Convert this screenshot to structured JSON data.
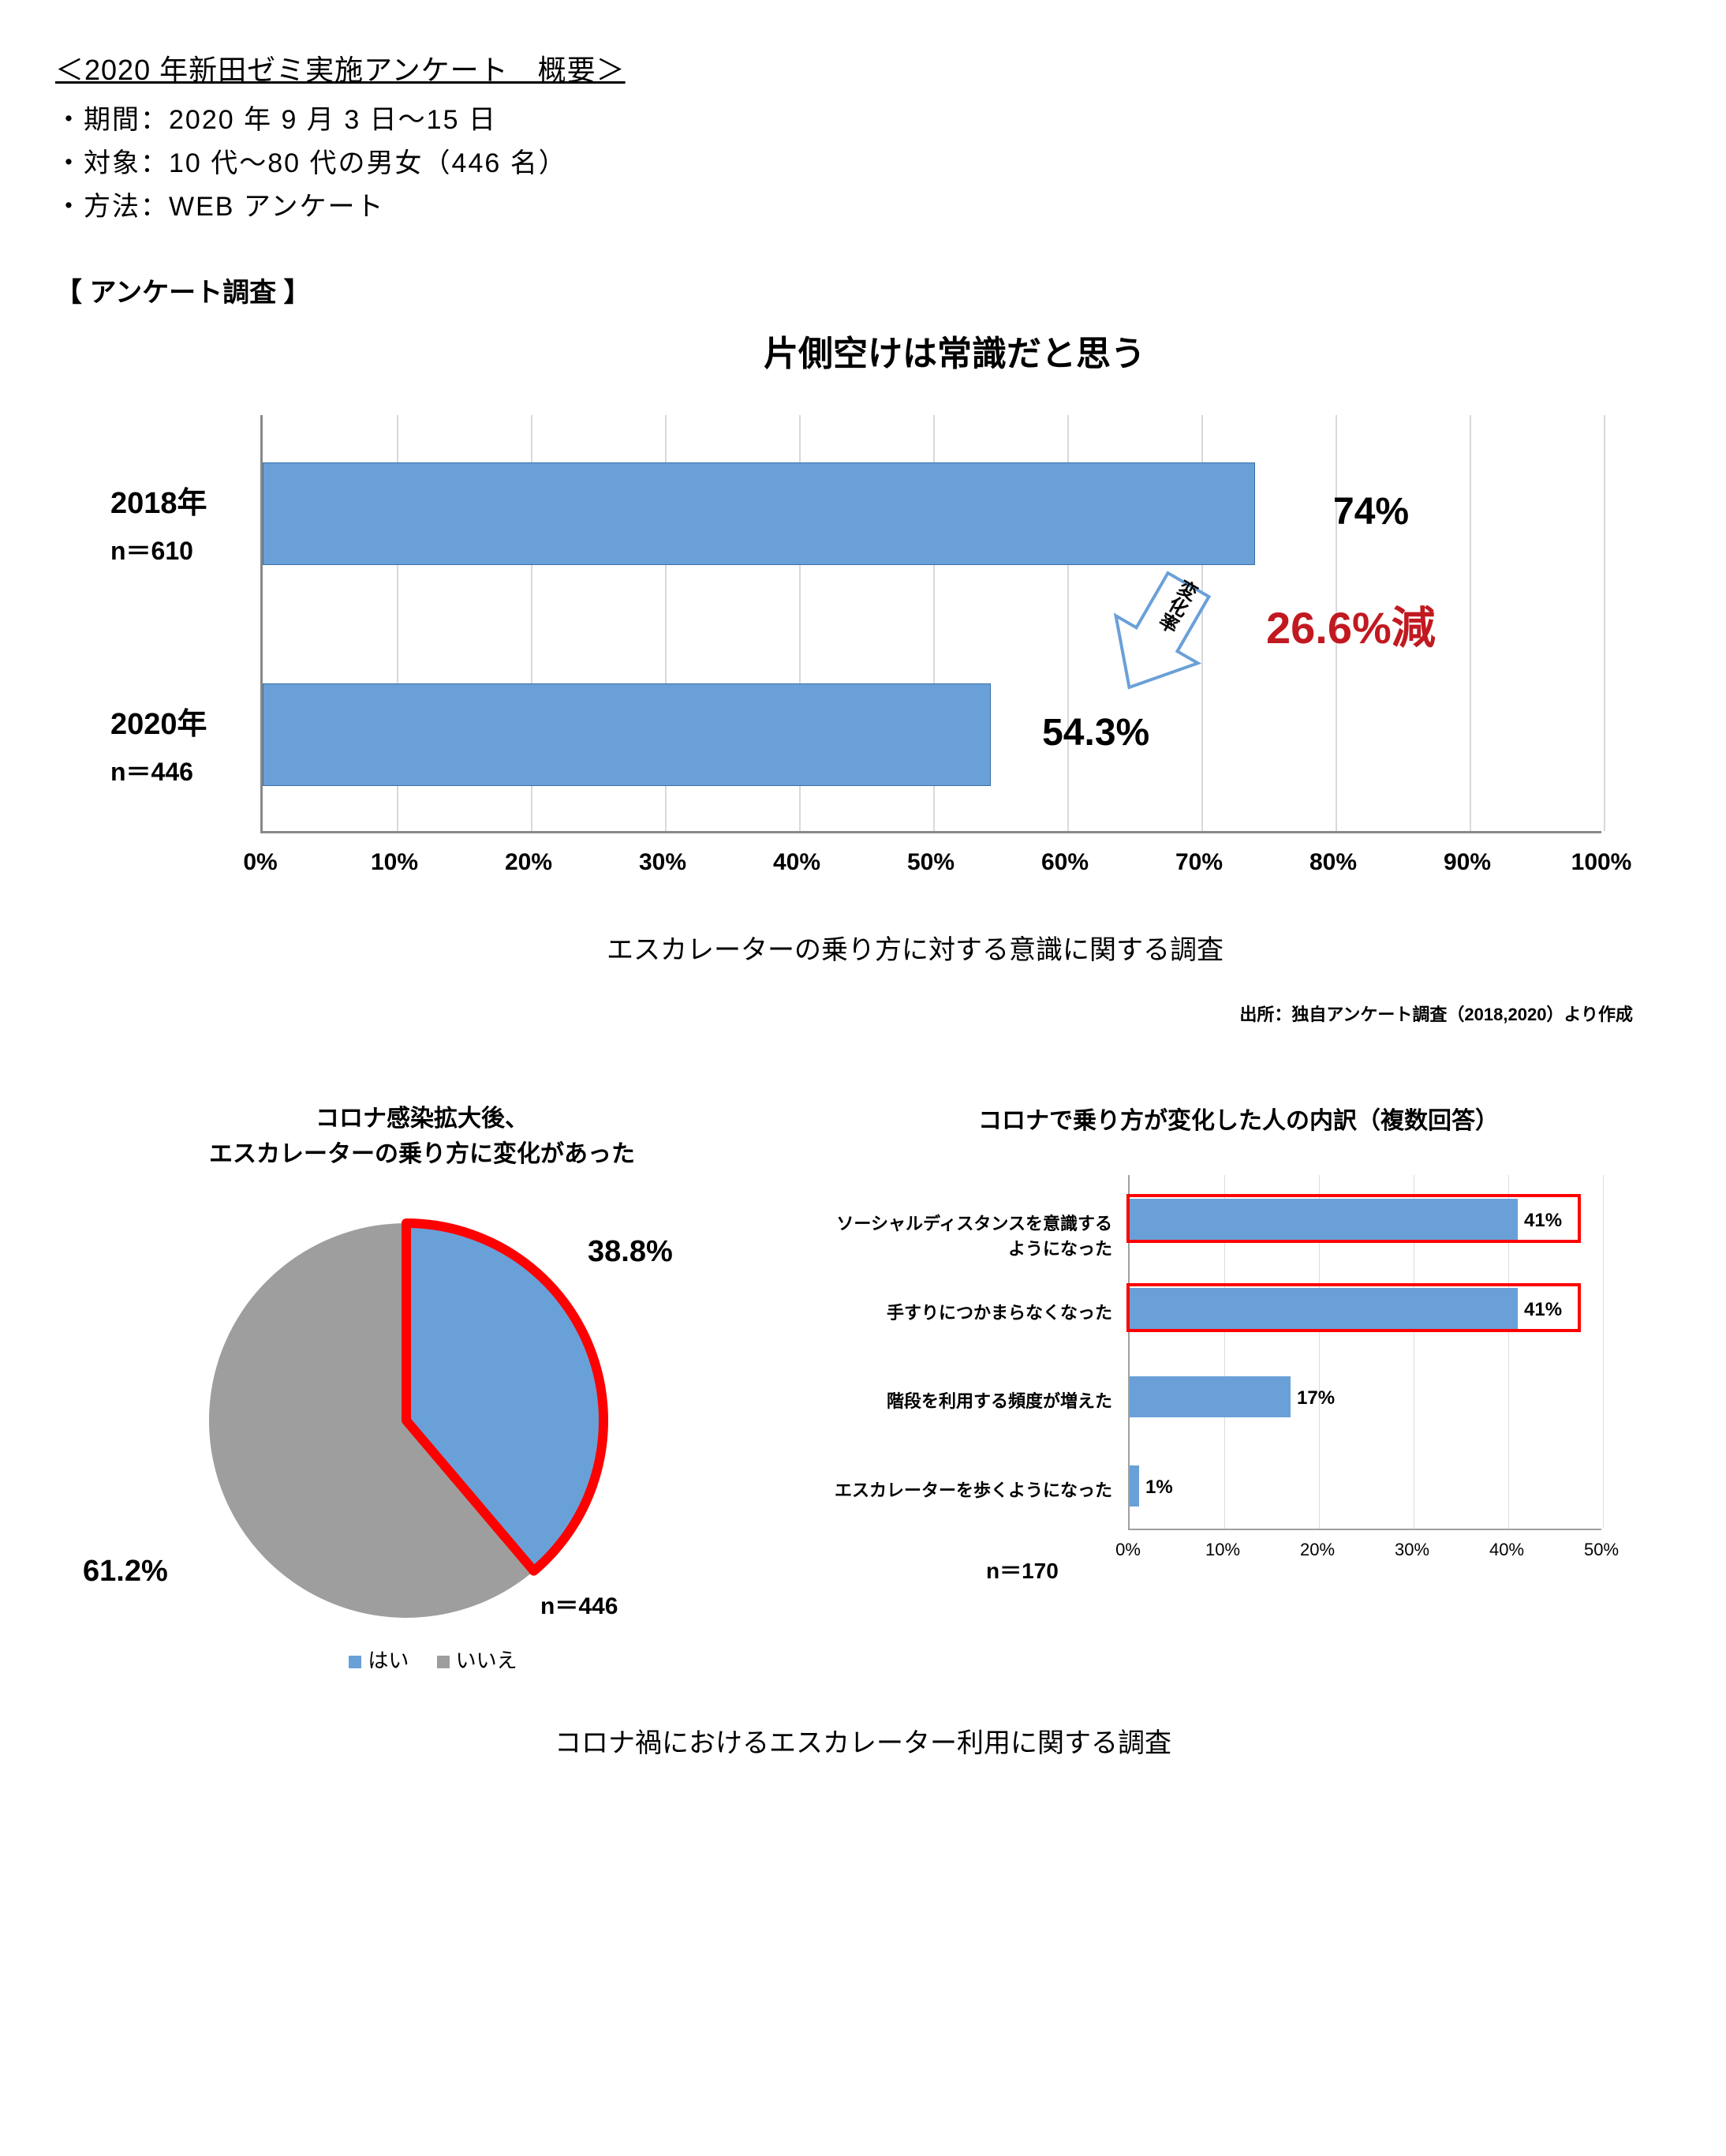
{
  "header": {
    "title": "＜2020 年新田ゼミ実施アンケート　概要＞",
    "bullets": [
      "・期間：2020 年 9 月 3 日～15 日",
      "・対象：10 代～80 代の男女（446 名）",
      "・方法：WEB アンケート"
    ],
    "survey_label": "【 アンケート調査 】"
  },
  "chart1": {
    "type": "horizontal-bar",
    "title": "片側空けは常識だと思う",
    "bar_color": "#6aa0d8",
    "bar_border": "#3b6fa8",
    "axis_color": "#898989",
    "grid_color": "#d9d9d9",
    "xlim": [
      0,
      100
    ],
    "xtick_step": 10,
    "xtick_suffix": "%",
    "items": [
      {
        "year": "2018年",
        "n": "n＝610",
        "value": 74.0,
        "label": "74%",
        "label_x_override": 80
      },
      {
        "year": "2020年",
        "n": "n＝446",
        "value": 54.3,
        "label": "54.3%"
      }
    ],
    "change": {
      "text": "26.6%減",
      "color": "#c11920",
      "arrow_text": "変化率",
      "arrow_fill": "#ffffff",
      "arrow_stroke": "#6aa0d8"
    },
    "caption": "エスカレーターの乗り方に対する意識に関する調査",
    "source": "出所：独自アンケート調査（2018,2020）より作成"
  },
  "pie": {
    "type": "pie",
    "title_line1": "コロナ感染拡大後、",
    "title_line2": "エスカレーターの乗り方に変化があった",
    "slices": [
      {
        "label": "はい",
        "value": 38.8,
        "display": "38.8%",
        "color": "#6aa0d8"
      },
      {
        "label": "いいえ",
        "value": 61.2,
        "display": "61.2%",
        "color": "#9e9e9e"
      }
    ],
    "highlight_stroke": "#ff0000",
    "highlight_width": 12,
    "n": "n＝446",
    "legend_marker_yes": "#6aa0d8",
    "legend_marker_no": "#9e9e9e",
    "legend_prefix": "■"
  },
  "hbar": {
    "type": "horizontal-bar",
    "title": "コロナで乗り方が変化した人の内訳（複数回答）",
    "bar_color": "#6aa0d8",
    "axis_color": "#a0a0a0",
    "grid_color": "#dcdcdc",
    "xlim": [
      0,
      50
    ],
    "xtick_step": 10,
    "xtick_suffix": "%",
    "highlight_color": "#ff0000",
    "items": [
      {
        "label": "ソーシャルディスタンスを意識するようになった",
        "value": 41,
        "display": "41%",
        "highlight": true
      },
      {
        "label": "手すりにつかまらなくなった",
        "value": 41,
        "display": "41%",
        "highlight": true
      },
      {
        "label": "階段を利用する頻度が増えた",
        "value": 17,
        "display": "17%",
        "highlight": false
      },
      {
        "label": "エスカレーターを歩くようになった",
        "value": 1,
        "display": "1%",
        "highlight": false
      }
    ],
    "n": "n＝170"
  },
  "row2_caption": "コロナ禍におけるエスカレーター利用に関する調査"
}
